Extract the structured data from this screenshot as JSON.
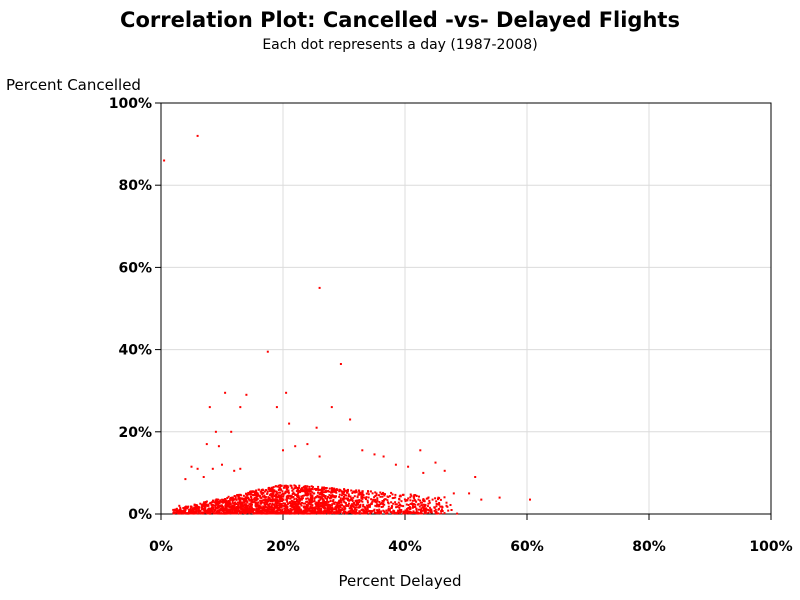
{
  "colors": {
    "points": "#ff0000",
    "grid": "#dcdcdc",
    "axis": "#000000"
  },
  "chart_data": {
    "type": "scatter",
    "title": "Correlation Plot: Cancelled -vs- Delayed Flights",
    "subtitle": "Each dot represents a day (1987-2008)",
    "xlabel": "Percent Delayed",
    "ylabel": "Percent Cancelled",
    "xlim": [
      0,
      100
    ],
    "ylim": [
      0,
      100
    ],
    "grid": true,
    "xticks": [
      "0%",
      "20%",
      "40%",
      "60%",
      "80%",
      "100%"
    ],
    "yticks": [
      "0%",
      "20%",
      "40%",
      "60%",
      "80%",
      "100%"
    ],
    "series": [
      {
        "points": [
          [
            0.5,
            86
          ],
          [
            6,
            92
          ],
          [
            26,
            55
          ],
          [
            17.5,
            39.5
          ],
          [
            29.5,
            36.5
          ],
          [
            14,
            29
          ],
          [
            10.5,
            29.5
          ],
          [
            20.5,
            29.5
          ],
          [
            8,
            26
          ],
          [
            13,
            26
          ],
          [
            19,
            26
          ],
          [
            28,
            26
          ],
          [
            31,
            23
          ],
          [
            21,
            22
          ],
          [
            25.5,
            21
          ],
          [
            9,
            20
          ],
          [
            11.5,
            20
          ],
          [
            7.5,
            17
          ],
          [
            9.5,
            16.5
          ],
          [
            22,
            16.5
          ],
          [
            24,
            17
          ],
          [
            20,
            15.5
          ],
          [
            33,
            15.5
          ],
          [
            35,
            14.5
          ],
          [
            36.5,
            14
          ],
          [
            42.5,
            15.5
          ],
          [
            26,
            14
          ],
          [
            45,
            12.5
          ],
          [
            38.5,
            12
          ],
          [
            40.5,
            11.5
          ],
          [
            43,
            10
          ],
          [
            46.5,
            10.5
          ],
          [
            51.5,
            9
          ],
          [
            48,
            5
          ],
          [
            50.5,
            5
          ],
          [
            52.5,
            3.5
          ],
          [
            55.5,
            4
          ],
          [
            60.5,
            3.5
          ],
          [
            2,
            1
          ],
          [
            3,
            2
          ],
          [
            4,
            8.5
          ],
          [
            5,
            11.5
          ],
          [
            6,
            11
          ],
          [
            7,
            9
          ],
          [
            8.5,
            11
          ],
          [
            10,
            12
          ],
          [
            12,
            10.5
          ],
          [
            13,
            11
          ]
        ]
      }
    ],
    "cloud_note_hidden": false
  }
}
